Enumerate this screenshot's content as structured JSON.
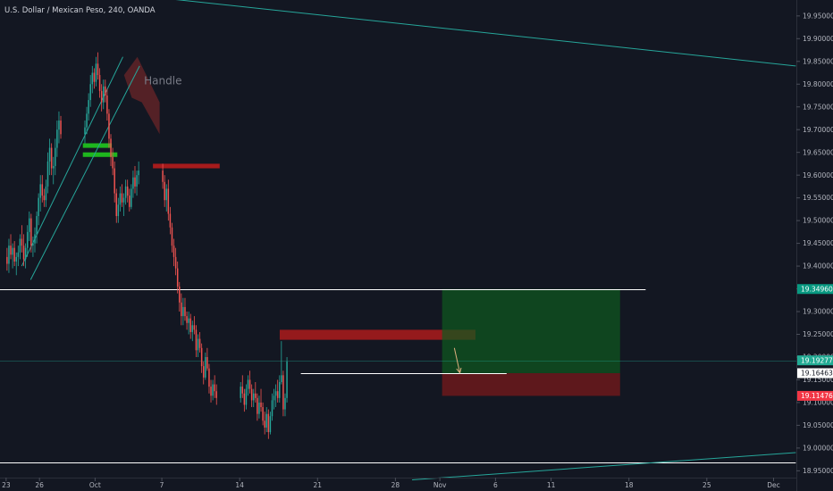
{
  "chart_data": {
    "type": "candlestick",
    "title": "U.S. Dollar / Mexican Peso, 240, OANDA",
    "ylim": [
      18.935,
      19.985
    ],
    "x_tick_labels": [
      {
        "label": "23",
        "day": 0
      },
      {
        "label": "26",
        "day": 3
      },
      {
        "label": "Oct",
        "day": 8
      },
      {
        "label": "7",
        "day": 14
      },
      {
        "label": "14",
        "day": 21
      },
      {
        "label": "21",
        "day": 28
      },
      {
        "label": "28",
        "day": 35
      },
      {
        "label": "Nov",
        "day": 39
      },
      {
        "label": "6",
        "day": 44
      },
      {
        "label": "11",
        "day": 49
      },
      {
        "label": "18",
        "day": 56
      },
      {
        "label": "25",
        "day": 63
      },
      {
        "label": "Dec",
        "day": 69
      }
    ],
    "y_ticks": [
      "19.95000",
      "19.90000",
      "19.85000",
      "19.80000",
      "19.75000",
      "19.70000",
      "19.65000",
      "19.60000",
      "19.55000",
      "19.50000",
      "19.45000",
      "19.40000",
      "19.35000",
      "19.30000",
      "19.25000",
      "19.20000",
      "19.15000",
      "19.10000",
      "19.05000",
      "19.00000",
      "18.95000"
    ],
    "price_badges": [
      {
        "label": "19.34960",
        "value": 19.3496,
        "bg": "#089981",
        "fg": "#ffffff"
      },
      {
        "label": "19.19277",
        "value": 19.19277,
        "bg": "#22ab94",
        "fg": "#ffffff"
      },
      {
        "label": "19.16463",
        "value": 19.16463,
        "bg": "#ffffff",
        "fg": "#131722"
      },
      {
        "label": "19.11476",
        "value": 19.11476,
        "bg": "#f23645",
        "fg": "#ffffff"
      }
    ],
    "horizontal_levels": [
      {
        "value": 19.3496,
        "color": "#ffffff",
        "from_day": -1,
        "to_day": 57.5
      },
      {
        "value": 18.968,
        "color": "#ffffff",
        "from_day": -1,
        "to_day": 71
      }
    ],
    "current_price_line": {
      "value": 19.19277,
      "color": "#22ab94"
    },
    "trend_lines": [
      {
        "x1": 11.8,
        "y1": 19.995,
        "x2": 71,
        "y2": 19.84,
        "color": "#26a69a"
      },
      {
        "x1": 36.5,
        "y1": 18.93,
        "x2": 71,
        "y2": 18.99,
        "color": "#26a69a"
      },
      {
        "x1": 1.4,
        "y1": 19.4,
        "x2": 10.5,
        "y2": 19.86,
        "color": "#26a69a"
      },
      {
        "x1": 2.2,
        "y1": 19.37,
        "x2": 12.0,
        "y2": 19.84,
        "color": "#26a69a"
      }
    ],
    "zones": [
      {
        "x1": 6.9,
        "x2": 9.5,
        "y1": 19.66,
        "y2": 19.67,
        "color": "#1fbf1f",
        "opacity": 0.95
      },
      {
        "x1": 6.9,
        "x2": 10.0,
        "y1": 19.64,
        "y2": 19.65,
        "color": "#1fbf1f",
        "opacity": 0.95
      },
      {
        "x1": 13.2,
        "x2": 19.2,
        "y1": 19.625,
        "y2": 19.615,
        "color": "#b71c1c",
        "opacity": 0.9
      },
      {
        "x1": 24.6,
        "x2": 42.2,
        "y1": 19.26,
        "y2": 19.238,
        "color": "#b71c1c",
        "opacity": 0.8
      },
      {
        "x1": 39.2,
        "x2": 55.2,
        "y1": 19.3496,
        "y2": 19.16463,
        "color": "#0e5a1e",
        "opacity": 0.7
      },
      {
        "x1": 39.2,
        "x2": 55.2,
        "y1": 19.16463,
        "y2": 19.11476,
        "color": "#7f1a1a",
        "opacity": 0.7
      }
    ],
    "entry_line": {
      "value": 19.16463,
      "from_day": 26.5,
      "to_day": 45,
      "color": "#ffffff"
    },
    "handle_shape": {
      "points": [
        [
          10.6,
          19.82
        ],
        [
          11.8,
          19.86
        ],
        [
          13.8,
          19.76
        ],
        [
          13.8,
          19.69
        ],
        [
          12.2,
          19.76
        ],
        [
          11.3,
          19.77
        ]
      ],
      "color": "#8b2a2a"
    },
    "handle_label": {
      "text": "Handle",
      "day": 12.4,
      "value": 19.8
    },
    "arrow": {
      "x1": 40.3,
      "y1": 19.22,
      "x2": 40.8,
      "y2": 19.165,
      "color": "#e0b080"
    },
    "candles": [
      {
        "o": 19.42,
        "h": 19.44,
        "l": 19.39,
        "c": 19.405
      },
      {
        "o": 19.405,
        "h": 19.46,
        "l": 19.385,
        "c": 19.445
      },
      {
        "o": 19.445,
        "h": 19.47,
        "l": 19.415,
        "c": 19.425
      },
      {
        "o": 19.425,
        "h": 19.45,
        "l": 19.395,
        "c": 19.44
      },
      {
        "o": 19.44,
        "h": 19.455,
        "l": 19.4,
        "c": 19.41
      },
      {
        "o": 19.41,
        "h": 19.43,
        "l": 19.38,
        "c": 19.42
      },
      {
        "o": 19.42,
        "h": 19.445,
        "l": 19.4,
        "c": 19.43
      },
      {
        "o": 19.43,
        "h": 19.47,
        "l": 19.415,
        "c": 19.46
      },
      {
        "o": 19.46,
        "h": 19.49,
        "l": 19.43,
        "c": 19.445
      },
      {
        "o": 19.445,
        "h": 19.47,
        "l": 19.4,
        "c": 19.415
      },
      {
        "o": 19.415,
        "h": 19.45,
        "l": 19.395,
        "c": 19.44
      },
      {
        "o": 19.44,
        "h": 19.49,
        "l": 19.42,
        "c": 19.475
      },
      {
        "o": 19.475,
        "h": 19.52,
        "l": 19.455,
        "c": 19.505
      },
      {
        "o": 19.505,
        "h": 19.515,
        "l": 19.43,
        "c": 19.445
      },
      {
        "o": 19.445,
        "h": 19.465,
        "l": 19.42,
        "c": 19.45
      },
      {
        "o": 19.45,
        "h": 19.485,
        "l": 19.43,
        "c": 19.47
      },
      {
        "o": 19.47,
        "h": 19.52,
        "l": 19.45,
        "c": 19.51
      },
      {
        "o": 19.51,
        "h": 19.56,
        "l": 19.49,
        "c": 19.55
      },
      {
        "o": 19.55,
        "h": 19.6,
        "l": 19.52,
        "c": 19.58
      },
      {
        "o": 19.58,
        "h": 19.6,
        "l": 19.54,
        "c": 19.555
      },
      {
        "o": 19.555,
        "h": 19.57,
        "l": 19.53,
        "c": 19.545
      },
      {
        "o": 19.545,
        "h": 19.59,
        "l": 19.53,
        "c": 19.575
      },
      {
        "o": 19.575,
        "h": 19.65,
        "l": 19.56,
        "c": 19.63
      },
      {
        "o": 19.63,
        "h": 19.68,
        "l": 19.6,
        "c": 19.66
      },
      {
        "o": 19.66,
        "h": 19.67,
        "l": 19.6,
        "c": 19.615
      },
      {
        "o": 19.615,
        "h": 19.64,
        "l": 19.58,
        "c": 19.62
      },
      {
        "o": 19.62,
        "h": 19.68,
        "l": 19.6,
        "c": 19.66
      },
      {
        "o": 19.66,
        "h": 19.72,
        "l": 19.64,
        "c": 19.7
      },
      {
        "o": 19.7,
        "h": 19.74,
        "l": 19.67,
        "c": 19.72
      },
      {
        "o": 19.72,
        "h": 19.73,
        "l": 19.68,
        "c": 19.69
      },
      {
        "o": 19.69,
        "h": 19.72,
        "l": 19.67,
        "c": 19.705
      },
      {
        "o": 19.705,
        "h": 19.75,
        "l": 19.69,
        "c": 19.735
      },
      {
        "o": 19.735,
        "h": 19.78,
        "l": 19.72,
        "c": 19.765
      },
      {
        "o": 19.765,
        "h": 19.82,
        "l": 19.75,
        "c": 19.8
      },
      {
        "o": 19.8,
        "h": 19.84,
        "l": 19.78,
        "c": 19.825
      },
      {
        "o": 19.825,
        "h": 19.835,
        "l": 19.79,
        "c": 19.805
      },
      {
        "o": 19.805,
        "h": 19.86,
        "l": 19.795,
        "c": 19.845
      },
      {
        "o": 19.845,
        "h": 19.87,
        "l": 19.81,
        "c": 19.82
      },
      {
        "o": 19.82,
        "h": 19.835,
        "l": 19.77,
        "c": 19.785
      },
      {
        "o": 19.785,
        "h": 19.8,
        "l": 19.74,
        "c": 19.76
      },
      {
        "o": 19.76,
        "h": 19.81,
        "l": 19.745,
        "c": 19.795
      },
      {
        "o": 19.795,
        "h": 19.81,
        "l": 19.76,
        "c": 19.775
      },
      {
        "o": 19.775,
        "h": 19.79,
        "l": 19.72,
        "c": 19.735
      },
      {
        "o": 19.735,
        "h": 19.745,
        "l": 19.66,
        "c": 19.68
      },
      {
        "o": 19.68,
        "h": 19.69,
        "l": 19.62,
        "c": 19.64
      },
      {
        "o": 19.64,
        "h": 19.66,
        "l": 19.6,
        "c": 19.615
      },
      {
        "o": 19.615,
        "h": 19.63,
        "l": 19.54,
        "c": 19.56
      },
      {
        "o": 19.56,
        "h": 19.57,
        "l": 19.495,
        "c": 19.51
      },
      {
        "o": 19.51,
        "h": 19.55,
        "l": 19.495,
        "c": 19.535
      },
      {
        "o": 19.535,
        "h": 19.575,
        "l": 19.52,
        "c": 19.56
      },
      {
        "o": 19.56,
        "h": 19.58,
        "l": 19.53,
        "c": 19.54
      },
      {
        "o": 19.54,
        "h": 19.56,
        "l": 19.51,
        "c": 19.55
      },
      {
        "o": 19.55,
        "h": 19.59,
        "l": 19.535,
        "c": 19.575
      },
      {
        "o": 19.575,
        "h": 19.59,
        "l": 19.54,
        "c": 19.555
      },
      {
        "o": 19.555,
        "h": 19.57,
        "l": 19.52,
        "c": 19.53
      },
      {
        "o": 19.53,
        "h": 19.58,
        "l": 19.525,
        "c": 19.57
      },
      {
        "o": 19.57,
        "h": 19.61,
        "l": 19.55,
        "c": 19.595
      },
      {
        "o": 19.595,
        "h": 19.62,
        "l": 19.56,
        "c": 19.575
      },
      {
        "o": 19.575,
        "h": 19.61,
        "l": 19.555,
        "c": 19.6
      },
      {
        "o": 19.6,
        "h": 19.63,
        "l": 19.58,
        "c": 19.61
      },
      {
        "o": 19.61,
        "h": 19.625,
        "l": 19.57,
        "c": 19.585
      },
      {
        "o": 19.585,
        "h": 19.6,
        "l": 19.53,
        "c": 19.545
      },
      {
        "o": 19.545,
        "h": 19.58,
        "l": 19.52,
        "c": 19.57
      },
      {
        "o": 19.57,
        "h": 19.59,
        "l": 19.5,
        "c": 19.515
      },
      {
        "o": 19.515,
        "h": 19.53,
        "l": 19.47,
        "c": 19.485
      },
      {
        "o": 19.485,
        "h": 19.495,
        "l": 19.43,
        "c": 19.445
      },
      {
        "o": 19.445,
        "h": 19.46,
        "l": 19.4,
        "c": 19.42
      },
      {
        "o": 19.42,
        "h": 19.44,
        "l": 19.38,
        "c": 19.395
      },
      {
        "o": 19.395,
        "h": 19.41,
        "l": 19.34,
        "c": 19.355
      },
      {
        "o": 19.355,
        "h": 19.365,
        "l": 19.3,
        "c": 19.32
      },
      {
        "o": 19.32,
        "h": 19.34,
        "l": 19.27,
        "c": 19.29
      },
      {
        "o": 19.29,
        "h": 19.33,
        "l": 19.27,
        "c": 19.31
      },
      {
        "o": 19.31,
        "h": 19.33,
        "l": 19.28,
        "c": 19.29
      },
      {
        "o": 19.29,
        "h": 19.3,
        "l": 19.26,
        "c": 19.275
      },
      {
        "o": 19.275,
        "h": 19.3,
        "l": 19.25,
        "c": 19.285
      },
      {
        "o": 19.285,
        "h": 19.295,
        "l": 19.24,
        "c": 19.255
      },
      {
        "o": 19.255,
        "h": 19.28,
        "l": 19.235,
        "c": 19.27
      },
      {
        "o": 19.27,
        "h": 19.29,
        "l": 19.25,
        "c": 19.26
      },
      {
        "o": 19.26,
        "h": 19.27,
        "l": 19.2,
        "c": 19.215
      },
      {
        "o": 19.215,
        "h": 19.25,
        "l": 19.2,
        "c": 19.24
      },
      {
        "o": 19.24,
        "h": 19.255,
        "l": 19.21,
        "c": 19.22
      },
      {
        "o": 19.22,
        "h": 19.23,
        "l": 19.165,
        "c": 19.18
      },
      {
        "o": 19.18,
        "h": 19.19,
        "l": 19.14,
        "c": 19.155
      },
      {
        "o": 19.155,
        "h": 19.21,
        "l": 19.15,
        "c": 19.2
      },
      {
        "o": 19.2,
        "h": 19.22,
        "l": 19.17,
        "c": 19.175
      },
      {
        "o": 19.175,
        "h": 19.185,
        "l": 19.12,
        "c": 19.135
      },
      {
        "o": 19.135,
        "h": 19.15,
        "l": 19.1,
        "c": 19.115
      },
      {
        "o": 19.115,
        "h": 19.15,
        "l": 19.105,
        "c": 19.14
      },
      {
        "o": 19.14,
        "h": 19.16,
        "l": 19.11,
        "c": 19.125
      },
      {
        "o": 19.125,
        "h": 19.14,
        "l": 19.095,
        "c": 19.11
      },
      {
        "o": 19.11,
        "h": 19.145,
        "l": 19.1,
        "c": 19.135
      },
      {
        "o": 19.135,
        "h": 19.16,
        "l": 19.11,
        "c": 19.12
      },
      {
        "o": 19.12,
        "h": 19.13,
        "l": 19.08,
        "c": 19.095
      },
      {
        "o": 19.095,
        "h": 19.14,
        "l": 19.085,
        "c": 19.13
      },
      {
        "o": 19.13,
        "h": 19.16,
        "l": 19.115,
        "c": 19.15
      },
      {
        "o": 19.15,
        "h": 19.17,
        "l": 19.12,
        "c": 19.13
      },
      {
        "o": 19.13,
        "h": 19.14,
        "l": 19.09,
        "c": 19.105
      },
      {
        "o": 19.105,
        "h": 19.13,
        "l": 19.09,
        "c": 19.12
      },
      {
        "o": 19.12,
        "h": 19.145,
        "l": 19.1,
        "c": 19.11
      },
      {
        "o": 19.11,
        "h": 19.12,
        "l": 19.06,
        "c": 19.075
      },
      {
        "o": 19.075,
        "h": 19.115,
        "l": 19.065,
        "c": 19.1
      },
      {
        "o": 19.1,
        "h": 19.13,
        "l": 19.08,
        "c": 19.09
      },
      {
        "o": 19.09,
        "h": 19.1,
        "l": 19.05,
        "c": 19.06
      },
      {
        "o": 19.06,
        "h": 19.08,
        "l": 19.03,
        "c": 19.045
      },
      {
        "o": 19.045,
        "h": 19.09,
        "l": 19.035,
        "c": 19.075
      },
      {
        "o": 19.075,
        "h": 19.085,
        "l": 19.02,
        "c": 19.035
      },
      {
        "o": 19.035,
        "h": 19.08,
        "l": 19.03,
        "c": 19.07
      },
      {
        "o": 19.07,
        "h": 19.12,
        "l": 19.06,
        "c": 19.105
      },
      {
        "o": 19.105,
        "h": 19.13,
        "l": 19.085,
        "c": 19.115
      },
      {
        "o": 19.115,
        "h": 19.14,
        "l": 19.09,
        "c": 19.125
      },
      {
        "o": 19.125,
        "h": 19.15,
        "l": 19.1,
        "c": 19.11
      },
      {
        "o": 19.11,
        "h": 19.16,
        "l": 19.1,
        "c": 19.145
      },
      {
        "o": 19.145,
        "h": 19.235,
        "l": 19.14,
        "c": 19.16
      },
      {
        "o": 19.16,
        "h": 19.17,
        "l": 19.07,
        "c": 19.085
      },
      {
        "o": 19.085,
        "h": 19.12,
        "l": 19.07,
        "c": 19.11
      },
      {
        "o": 19.11,
        "h": 19.2,
        "l": 19.1,
        "c": 19.19
      }
    ]
  }
}
